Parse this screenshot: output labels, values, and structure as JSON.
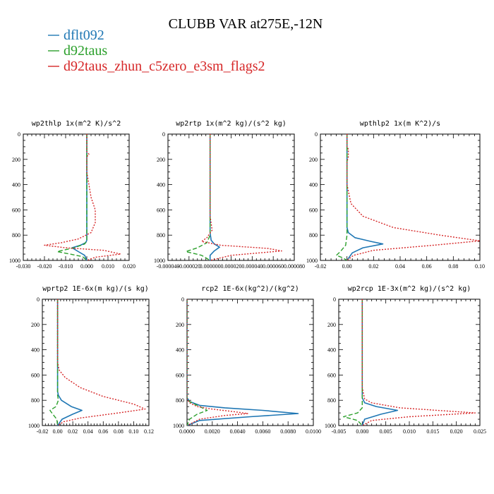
{
  "title": "CLUBB VAR at275E,-12N",
  "legend": [
    {
      "name": "dflt092",
      "color": "#1f77b4"
    },
    {
      "name": "d92taus",
      "color": "#2ca02c"
    },
    {
      "name": "d92taus_zhun_c5zero_e3sm_flags2",
      "color": "#d62728"
    }
  ],
  "chart_data": [
    {
      "type": "line",
      "title": "wp2thlp    1x(m^2 K)/s^2",
      "xlim": [
        -0.03,
        0.02
      ],
      "xticks": [
        -0.03,
        -0.02,
        -0.01,
        0.0,
        0.01,
        0.02
      ],
      "xticklabels": [
        "-0.030",
        "-0.020",
        "-0.010",
        "0.000",
        "0.010",
        "0.020"
      ],
      "ylim": [
        1000,
        0
      ],
      "yticks": [
        0,
        200,
        400,
        600,
        800,
        1000
      ],
      "yticklabels": [
        "0",
        "200",
        "400",
        "600",
        "800",
        "1000"
      ],
      "series": [
        {
          "name": "dflt092",
          "x": [
            0,
            0,
            0,
            0,
            0,
            0,
            -0.0005,
            -0.003,
            -0.007,
            -0.004,
            -0.001,
            0
          ],
          "y": [
            0,
            300,
            600,
            750,
            800,
            840,
            860,
            880,
            900,
            930,
            960,
            1000
          ]
        },
        {
          "name": "d92taus",
          "x": [
            0,
            0,
            0,
            0,
            0,
            0,
            -0.001,
            -0.006,
            -0.014,
            -0.008,
            -0.002,
            0
          ],
          "y": [
            0,
            300,
            600,
            750,
            800,
            840,
            870,
            900,
            930,
            950,
            970,
            1000
          ]
        },
        {
          "name": "d92taus_zhun_c5zero_e3sm_flags2",
          "x": [
            0,
            0,
            0,
            0.001,
            0,
            0,
            0.002,
            0.004,
            0.004,
            0.002,
            -0.004,
            -0.012,
            -0.02,
            -0.01,
            0.008,
            0.016,
            0.004,
            0
          ],
          "y": [
            0,
            100,
            140,
            160,
            180,
            300,
            500,
            600,
            700,
            780,
            830,
            860,
            880,
            900,
            920,
            950,
            975,
            1000
          ]
        }
      ]
    },
    {
      "type": "line",
      "title": "wp2rtp    1x(m^2 kg)/(s^2 kg)",
      "xlim": [
        -4e-05,
        8e-05
      ],
      "xticks": [
        -4e-05,
        -2e-05,
        0.0,
        2e-05,
        4e-05,
        6e-05,
        8e-05
      ],
      "xticklabels": [
        "-0.000040",
        "-0.000020",
        "0.000000",
        "0.000020",
        "0.000040",
        "0.000060",
        "0.000080"
      ],
      "ylim": [
        1000,
        0
      ],
      "yticks": [
        0,
        200,
        400,
        600,
        800,
        1000
      ],
      "yticklabels": [
        "0",
        "200",
        "400",
        "600",
        "800",
        "1000"
      ],
      "series": [
        {
          "name": "dflt092",
          "x": [
            0,
            0,
            0,
            0,
            1e-06,
            4e-06,
            9e-06,
            4e-06,
            0,
            0
          ],
          "y": [
            0,
            300,
            600,
            780,
            840,
            870,
            895,
            925,
            960,
            1000
          ]
        },
        {
          "name": "d92taus",
          "x": [
            0,
            0,
            0,
            0,
            -3e-06,
            -1.2e-05,
            -2.3e-05,
            -8e-06,
            0
          ],
          "y": [
            0,
            300,
            600,
            800,
            860,
            900,
            930,
            960,
            1000
          ]
        },
        {
          "name": "d92taus_zhun_c5zero_e3sm_flags2",
          "x": [
            0,
            0,
            0,
            0,
            2e-06,
            -3e-06,
            -8e-06,
            1e-05,
            5.5e-05,
            6.8e-05,
            2e-05,
            0
          ],
          "y": [
            0,
            300,
            500,
            650,
            760,
            820,
            850,
            880,
            905,
            925,
            960,
            1000
          ]
        }
      ]
    },
    {
      "type": "line",
      "title": "wpthlp2    1x(m K^2)/s",
      "xlim": [
        -0.02,
        0.1
      ],
      "xticks": [
        -0.02,
        0.0,
        0.02,
        0.04,
        0.06,
        0.08,
        0.1
      ],
      "xticklabels": [
        "-0.02",
        "0.00",
        "0.02",
        "0.04",
        "0.06",
        "0.08",
        "0.10"
      ],
      "ylim": [
        1000,
        0
      ],
      "yticks": [
        0,
        200,
        400,
        600,
        800,
        1000
      ],
      "yticklabels": [
        "0",
        "200",
        "400",
        "600",
        "800",
        "1000"
      ],
      "series": [
        {
          "name": "dflt092",
          "x": [
            0,
            0,
            0,
            0,
            0.001,
            0.006,
            0.018,
            0.027,
            0.012,
            0.004,
            0
          ],
          "y": [
            0,
            300,
            600,
            740,
            780,
            820,
            850,
            870,
            900,
            940,
            1000
          ]
        },
        {
          "name": "d92taus",
          "x": [
            0,
            0,
            0,
            0,
            -0.001,
            -0.005,
            -0.008,
            -0.003,
            0
          ],
          "y": [
            0,
            300,
            600,
            800,
            880,
            930,
            960,
            980,
            1000
          ]
        },
        {
          "name": "d92taus_zhun_c5zero_e3sm_flags2",
          "x": [
            0,
            0,
            0.001,
            0.001,
            0,
            0,
            0.003,
            0.012,
            0.035,
            0.07,
            0.1,
            0.065,
            0.02,
            0.005,
            0
          ],
          "y": [
            0,
            100,
            120,
            180,
            220,
            400,
            550,
            650,
            740,
            800,
            845,
            880,
            920,
            960,
            1000
          ]
        }
      ]
    },
    {
      "type": "line",
      "title": "wprtp2   1E-6x(m kg)/(s kg)",
      "xlim": [
        -0.02,
        0.12
      ],
      "xticks": [
        -0.02,
        0.0,
        0.02,
        0.04,
        0.06,
        0.08,
        0.1,
        0.12
      ],
      "xticklabels": [
        "-0.02",
        "0.00",
        "0.02",
        "0.04",
        "0.06",
        "0.08",
        "0.10",
        "0.12"
      ],
      "ylim": [
        1000,
        0
      ],
      "yticks": [
        0,
        200,
        400,
        600,
        800,
        1000
      ],
      "yticklabels": [
        "0",
        "200",
        "400",
        "600",
        "800",
        "1000"
      ],
      "series": [
        {
          "name": "dflt092",
          "x": [
            0,
            0,
            0,
            0,
            0.001,
            0.005,
            0.018,
            0.032,
            0.02,
            0.006,
            0
          ],
          "y": [
            0,
            300,
            600,
            730,
            760,
            800,
            850,
            880,
            910,
            950,
            1000
          ]
        },
        {
          "name": "d92taus",
          "x": [
            0,
            0,
            0,
            0,
            0.001,
            -0.002,
            -0.01,
            -0.005,
            -0.001,
            0
          ],
          "y": [
            0,
            300,
            600,
            760,
            800,
            850,
            880,
            920,
            950,
            1000
          ]
        },
        {
          "name": "d92taus_zhun_c5zero_e3sm_flags2",
          "x": [
            0,
            0,
            0,
            0.002,
            0.01,
            0.03,
            0.06,
            0.1,
            0.115,
            0.08,
            0.03,
            0.008,
            0
          ],
          "y": [
            0,
            300,
            500,
            560,
            620,
            700,
            770,
            830,
            870,
            900,
            940,
            970,
            1000
          ]
        }
      ]
    },
    {
      "type": "line",
      "title": "rcp2   1E-6x(kg^2)/(kg^2)",
      "xlim": [
        0.0,
        0.01
      ],
      "xticks": [
        0.0,
        0.002,
        0.004,
        0.006,
        0.008,
        0.01
      ],
      "xticklabels": [
        "0.0000",
        "0.0020",
        "0.0040",
        "0.0060",
        "0.0080",
        "0.0100"
      ],
      "ylim": [
        1000,
        0
      ],
      "yticks": [
        0,
        200,
        400,
        600,
        800,
        1000
      ],
      "yticklabels": [
        "0",
        "200",
        "400",
        "600",
        "800",
        "1000"
      ],
      "series": [
        {
          "name": "dflt092",
          "x": [
            0,
            0,
            0.0002,
            0.001,
            0.003,
            0.006,
            0.0088,
            0.005,
            0.001,
            0
          ],
          "y": [
            0,
            780,
            810,
            840,
            860,
            880,
            905,
            930,
            960,
            1000
          ]
        },
        {
          "name": "d92taus",
          "x": [
            0,
            0,
            0.0002,
            0.001,
            0.0016,
            0.0008,
            0.0002,
            0
          ],
          "y": [
            0,
            780,
            810,
            850,
            880,
            910,
            950,
            1000
          ]
        },
        {
          "name": "d92taus_zhun_c5zero_e3sm_flags2",
          "x": [
            0,
            0,
            0.0002,
            0.0008,
            0.002,
            0.0037,
            0.0048,
            0.003,
            0.001,
            0
          ],
          "y": [
            0,
            790,
            820,
            850,
            870,
            890,
            905,
            920,
            950,
            1000
          ]
        }
      ]
    },
    {
      "type": "line",
      "title": "wp2rcp   1E-3x(m^2 kg)/(s^2 kg)",
      "xlim": [
        -0.005,
        0.025
      ],
      "xticks": [
        -0.005,
        0.0,
        0.005,
        0.01,
        0.015,
        0.02,
        0.025
      ],
      "xticklabels": [
        "-0.005",
        "0.000",
        "0.005",
        "0.010",
        "0.015",
        "0.020",
        "0.025"
      ],
      "ylim": [
        1000,
        0
      ],
      "yticks": [
        0,
        200,
        400,
        600,
        800,
        1000
      ],
      "yticklabels": [
        "0",
        "200",
        "400",
        "600",
        "800",
        "1000"
      ],
      "series": [
        {
          "name": "dflt092",
          "x": [
            0,
            0,
            0,
            0,
            0.0005,
            0.003,
            0.0075,
            0.004,
            0.0005,
            0
          ],
          "y": [
            0,
            300,
            600,
            780,
            820,
            850,
            880,
            910,
            950,
            1000
          ]
        },
        {
          "name": "d92taus",
          "x": [
            0,
            0,
            0,
            0,
            0,
            -0.001,
            -0.004,
            -0.001,
            0
          ],
          "y": [
            0,
            300,
            600,
            800,
            860,
            900,
            930,
            960,
            1000
          ]
        },
        {
          "name": "d92taus_zhun_c5zero_e3sm_flags2",
          "x": [
            0,
            0,
            0,
            0,
            0.0005,
            0.002,
            0.008,
            0.024,
            0.01,
            0.002,
            0
          ],
          "y": [
            0,
            300,
            480,
            700,
            790,
            820,
            860,
            900,
            930,
            960,
            1000
          ]
        }
      ]
    }
  ]
}
